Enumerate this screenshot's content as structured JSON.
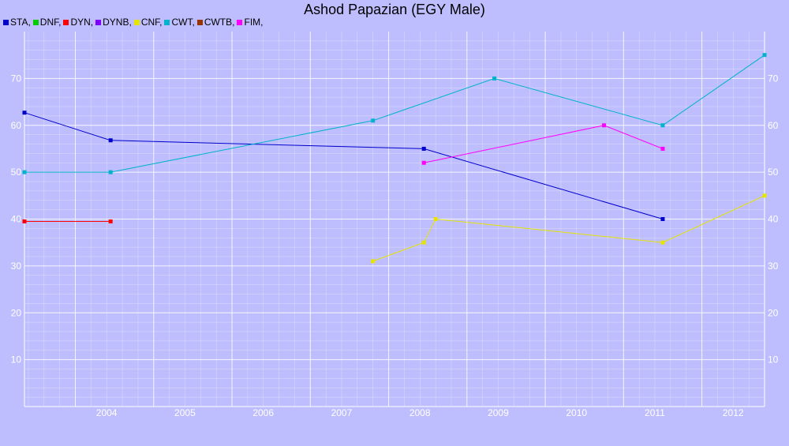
{
  "chart_data": {
    "type": "line",
    "title": "Ashod Papazian (EGY Male)",
    "xlabel": "",
    "ylabel": "",
    "ylim": [
      0,
      80
    ],
    "yticks": [
      10,
      20,
      30,
      40,
      50,
      60,
      70
    ],
    "xlim": [
      2003.35,
      2012.8
    ],
    "xticks": [
      "2004",
      "2005",
      "2006",
      "2007",
      "2008",
      "2009",
      "2010",
      "2011",
      "2012"
    ],
    "grid": true,
    "legend_position": "top-left",
    "legend": [
      {
        "name": "STA,",
        "color": "#0000cc"
      },
      {
        "name": "DNF,",
        "color": "#00cc00"
      },
      {
        "name": "DYN,",
        "color": "#ff0000"
      },
      {
        "name": "DYNB,",
        "color": "#7f00ff"
      },
      {
        "name": "CNF,",
        "color": "#e5e500"
      },
      {
        "name": "CWT,",
        "color": "#00b2cc"
      },
      {
        "name": "CWTB,",
        "color": "#993300"
      },
      {
        "name": "FIM,",
        "color": "#ff00ff"
      }
    ],
    "series": [
      {
        "name": "STA",
        "color": "#0000cc",
        "points": [
          [
            2003.35,
            62.7
          ],
          [
            2004.45,
            56.8
          ],
          [
            2008.45,
            55.0
          ],
          [
            2011.5,
            40.0
          ]
        ]
      },
      {
        "name": "DYN",
        "color": "#ff0000",
        "points": [
          [
            2003.35,
            39.5
          ],
          [
            2004.45,
            39.5
          ]
        ]
      },
      {
        "name": "CNF",
        "color": "#e5e500",
        "points": [
          [
            2007.8,
            31.0
          ],
          [
            2008.45,
            35.0
          ],
          [
            2008.6,
            40.0
          ],
          [
            2011.5,
            35.0
          ],
          [
            2012.8,
            45.0
          ]
        ]
      },
      {
        "name": "CWT",
        "color": "#00b2cc",
        "points": [
          [
            2003.35,
            50.0
          ],
          [
            2004.45,
            50.0
          ],
          [
            2007.8,
            61.0
          ],
          [
            2009.35,
            70.0
          ],
          [
            2011.5,
            60.0
          ],
          [
            2012.8,
            75.0
          ]
        ]
      },
      {
        "name": "FIM",
        "color": "#ff00ff",
        "points": [
          [
            2008.45,
            52.0
          ],
          [
            2010.75,
            60.0
          ],
          [
            2011.5,
            55.0
          ]
        ]
      }
    ]
  }
}
